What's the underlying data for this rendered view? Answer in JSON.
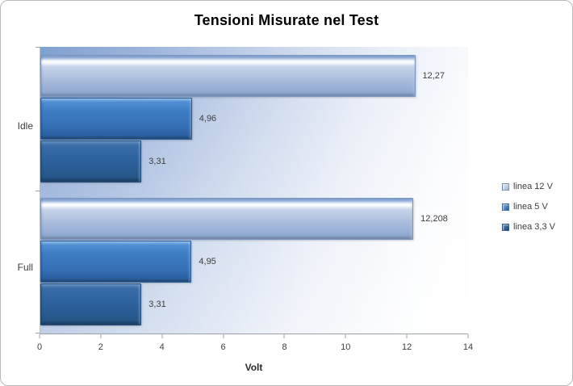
{
  "title": "Tensioni Misurate nel Test",
  "chart_data": {
    "type": "bar",
    "orientation": "horizontal",
    "title": "Tensioni Misurate nel Test",
    "xlabel": "Volt",
    "ylabel": "",
    "xlim": [
      0,
      14
    ],
    "xticks": [
      "0",
      "2",
      "4",
      "6",
      "8",
      "10",
      "12",
      "14"
    ],
    "grid": false,
    "legend_position": "right",
    "categories": [
      "Idle",
      "Full"
    ],
    "series": [
      {
        "name": "linea 12 V",
        "values": [
          12.27,
          12.208
        ],
        "labels": [
          "12,27",
          "12,208"
        ],
        "color": "#a9bcdd"
      },
      {
        "name": "linea 5 V",
        "values": [
          4.96,
          4.95
        ],
        "labels": [
          "4,96",
          "4,95"
        ],
        "color": "#3d7cc3"
      },
      {
        "name": "linea 3,3 V",
        "values": [
          3.31,
          3.31
        ],
        "labels": [
          "3,31",
          "3,31"
        ],
        "color": "#2e63a0"
      }
    ],
    "plot_bg_gradient": [
      "#7fa0d0",
      "#ffffff"
    ],
    "axis_color": "#9aa0a8",
    "text_color": "#3d3d3d"
  }
}
